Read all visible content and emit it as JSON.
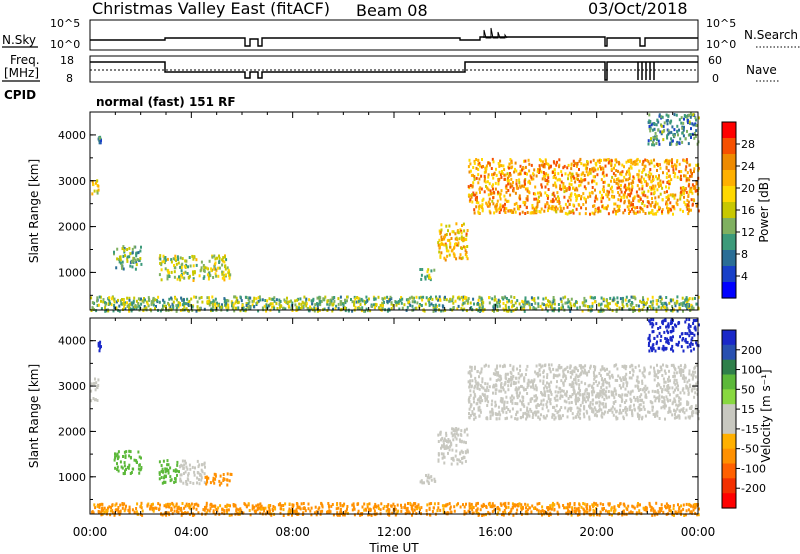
{
  "header": {
    "title": "Christmas Valley East (fitACF)",
    "beam": "Beam 08",
    "date": "03/Oct/2018"
  },
  "noise_panel": {
    "left_label": "N.Sky",
    "right_label": "N.Search",
    "left_ticks": [
      "10^5",
      "10^0"
    ],
    "right_ticks": [
      "10^5",
      "10^0"
    ]
  },
  "freq_panel": {
    "left_label_line1": "Freq.",
    "left_label_line2": "[MHz]",
    "right_label": "Nave",
    "left_ticks": [
      "18",
      "8"
    ],
    "right_ticks": [
      "60",
      "0"
    ]
  },
  "cpid": {
    "label": "CPID",
    "text": "normal (fast) 151 RF"
  },
  "power_colorbar": {
    "label": "Power [dB]",
    "ticks": [
      "28",
      "24",
      "20",
      "16",
      "12",
      "8",
      "4"
    ],
    "colors": [
      "#ff0000",
      "#f65000",
      "#ee8a00",
      "#ffb000",
      "#ffd800",
      "#c8c800",
      "#7fb060",
      "#3c9a7a",
      "#2a6e96",
      "#1840c8",
      "#0000ff"
    ]
  },
  "velocity_colorbar": {
    "label": "Velocity [m s⁻¹]",
    "ticks": [
      "200",
      "100",
      "50",
      "15",
      "-15",
      "-50",
      "-100",
      "-200"
    ],
    "colors": [
      "#1a28c8",
      "#2850b0",
      "#2f7f4a",
      "#5cb83a",
      "#88d840",
      "#c8c8c0",
      "#c8c8c0",
      "#ffb000",
      "#ff9000",
      "#ff6000",
      "#f33000",
      "#ff0000"
    ]
  },
  "chart_data": [
    {
      "type": "heatmap",
      "name_axis": "Power",
      "xlabel": "Time UT",
      "ylabel": "Slant Range [km]",
      "x_ticks": [
        "00:00",
        "04:00",
        "08:00",
        "12:00",
        "16:00",
        "20:00",
        "00:00"
      ],
      "xlim_hours": [
        0,
        24
      ],
      "y_ticks": [
        1000,
        2000,
        3000,
        4000
      ],
      "ylim_km": [
        180,
        4500
      ],
      "regions": [
        {
          "t": [
            0.0,
            0.3
          ],
          "r": [
            2700,
            3100
          ],
          "value": 18
        },
        {
          "t": [
            0.3,
            0.4
          ],
          "r": [
            3800,
            4000
          ],
          "value": 8
        },
        {
          "t": [
            0.9,
            2.0
          ],
          "r": [
            1100,
            1600
          ],
          "value": 10
        },
        {
          "t": [
            2.7,
            5.5
          ],
          "r": [
            850,
            1400
          ],
          "value": 14
        },
        {
          "t": [
            13.0,
            13.6
          ],
          "r": [
            850,
            1100
          ],
          "value": 14
        },
        {
          "t": [
            13.7,
            14.9
          ],
          "r": [
            1300,
            2100
          ],
          "value": 20
        },
        {
          "t": [
            14.9,
            24.0
          ],
          "r": [
            2300,
            3500
          ],
          "value": 22
        },
        {
          "t": [
            22.0,
            24.0
          ],
          "r": [
            3800,
            4500
          ],
          "value": 8
        },
        {
          "t": [
            0.0,
            24.0
          ],
          "r": [
            180,
            500
          ],
          "value": 12
        }
      ]
    },
    {
      "type": "heatmap",
      "name_axis": "Velocity",
      "xlabel": "Time UT",
      "ylabel": "Slant Range [km]",
      "x_ticks": [
        "00:00",
        "04:00",
        "08:00",
        "12:00",
        "16:00",
        "20:00",
        "00:00"
      ],
      "xlim_hours": [
        0,
        24
      ],
      "y_ticks": [
        1000,
        2000,
        3000,
        4000
      ],
      "ylim_km": [
        180,
        4500
      ],
      "regions": [
        {
          "t": [
            0.0,
            0.3
          ],
          "r": [
            2700,
            3200
          ],
          "value": 0
        },
        {
          "t": [
            0.3,
            0.4
          ],
          "r": [
            3800,
            4000
          ],
          "value": 200
        },
        {
          "t": [
            0.9,
            2.0
          ],
          "r": [
            1100,
            1600
          ],
          "value": 60
        },
        {
          "t": [
            2.7,
            3.5
          ],
          "r": [
            850,
            1400
          ],
          "value": 60
        },
        {
          "t": [
            3.5,
            4.5
          ],
          "r": [
            850,
            1400
          ],
          "value": 0
        },
        {
          "t": [
            4.5,
            5.6
          ],
          "r": [
            850,
            1100
          ],
          "value": -60
        },
        {
          "t": [
            13.0,
            13.6
          ],
          "r": [
            850,
            1100
          ],
          "value": 0
        },
        {
          "t": [
            13.7,
            14.9
          ],
          "r": [
            1300,
            2100
          ],
          "value": 0
        },
        {
          "t": [
            14.9,
            24.0
          ],
          "r": [
            2300,
            3500
          ],
          "value": 0
        },
        {
          "t": [
            22.0,
            24.0
          ],
          "r": [
            3800,
            4500
          ],
          "value": 200
        },
        {
          "t": [
            0.0,
            24.0
          ],
          "r": [
            180,
            450
          ],
          "value": -50
        }
      ]
    }
  ]
}
